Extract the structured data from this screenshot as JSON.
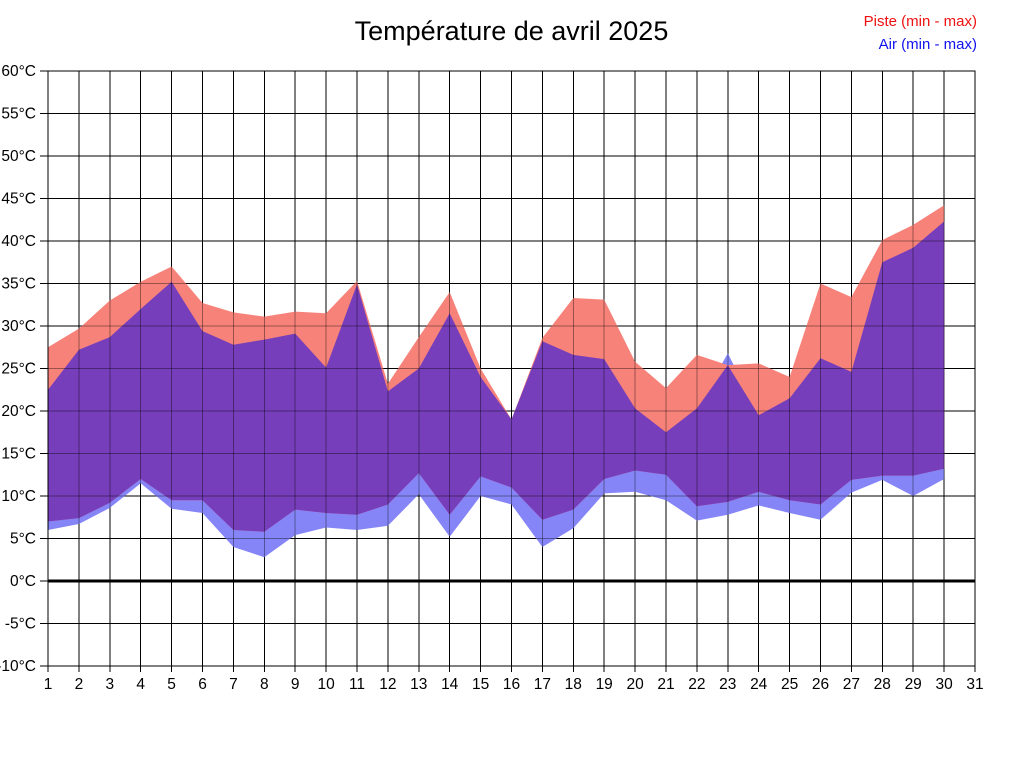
{
  "title": "Température de avril 2025",
  "legend": {
    "piste": "Piste (min - max)",
    "air": "Air (min - max)"
  },
  "colors": {
    "background": "#FFFFFF",
    "piste_fill": "#F7827A",
    "air_fill": "#8585F8",
    "overlap_fill": "#763EBA",
    "piste_legend_text": "#EE1111",
    "air_legend_text": "#1111EE",
    "grid": "#000000",
    "zero_line": "#000000",
    "axis_text": "#000000"
  },
  "chart_data": {
    "type": "area",
    "title": "Température de avril 2025",
    "xlabel": "",
    "ylabel": "",
    "x_axis_days": [
      "1",
      "2",
      "3",
      "4",
      "5",
      "6",
      "7",
      "8",
      "9",
      "10",
      "11",
      "12",
      "13",
      "14",
      "15",
      "16",
      "17",
      "18",
      "19",
      "20",
      "21",
      "22",
      "23",
      "24",
      "25",
      "26",
      "27",
      "28",
      "29",
      "30",
      "31"
    ],
    "ytick_labels": [
      "60°C",
      "55°C",
      "50°C",
      "45°C",
      "40°C",
      "35°C",
      "30°C",
      "25°C",
      "20°C",
      "15°C",
      "10°C",
      "5°C",
      "0°C",
      "-5°C",
      "-10°C"
    ],
    "ylim": [
      -10,
      60
    ],
    "ytick_step": 5,
    "xlim_days": [
      1,
      31
    ],
    "plotted_days": 30,
    "grid": true,
    "zero_line_at": 0,
    "legend_position": "top-right",
    "series": [
      {
        "name": "Piste (min - max)",
        "band": "piste",
        "min": [
          7.0,
          7.4,
          9.2,
          12.0,
          9.5,
          9.5,
          6.0,
          5.8,
          8.4,
          8.0,
          7.8,
          9.0,
          12.7,
          7.8,
          12.3,
          11.0,
          7.2,
          8.4,
          12.0,
          13.0,
          12.5,
          8.8,
          9.3,
          10.5,
          9.5,
          9.0,
          11.9,
          12.4,
          12.4,
          13.2
        ],
        "max": [
          27.5,
          29.7,
          33.0,
          35.2,
          37.0,
          32.7,
          31.6,
          31.1,
          31.7,
          31.5,
          35.3,
          23.2,
          28.7,
          34.0,
          25.0,
          19.0,
          28.6,
          33.3,
          33.1,
          25.8,
          22.7,
          26.6,
          25.4,
          25.6,
          24.0,
          35.0,
          33.4,
          40.1,
          41.9,
          44.2
        ]
      },
      {
        "name": "Air (min - max)",
        "band": "air",
        "min": [
          6.0,
          6.7,
          8.6,
          11.5,
          8.5,
          8.0,
          4.0,
          2.8,
          5.4,
          6.3,
          6.0,
          6.5,
          10.2,
          5.2,
          10.0,
          9.0,
          4.0,
          6.2,
          10.3,
          10.5,
          9.5,
          7.1,
          7.8,
          8.9,
          8.0,
          7.2,
          10.4,
          11.9,
          10.0,
          12.0
        ],
        "max": [
          22.5,
          27.2,
          28.7,
          32.0,
          35.2,
          29.4,
          27.8,
          28.4,
          29.1,
          25.1,
          34.9,
          22.3,
          25.0,
          31.5,
          24.0,
          19.0,
          28.2,
          26.6,
          26.1,
          20.3,
          17.5,
          20.3,
          26.8,
          19.5,
          21.5,
          26.2,
          24.6,
          37.5,
          39.2,
          42.3
        ]
      }
    ]
  }
}
